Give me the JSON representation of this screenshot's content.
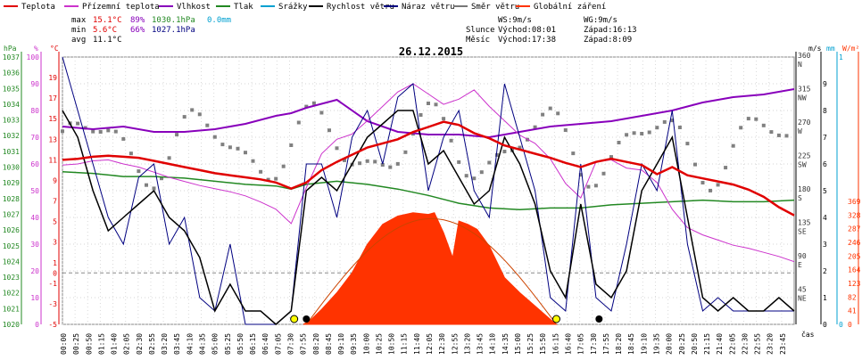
{
  "chart_data": {
    "type": "line",
    "title": "26.12.2015",
    "xlabel": "čas",
    "legend": [
      {
        "name": "Teplota",
        "color": "#e00000"
      },
      {
        "name": "Přízemní teplota",
        "color": "#cc33cc"
      },
      {
        "name": "Vlhkost",
        "color": "#8800bb"
      },
      {
        "name": "Tlak",
        "color": "#228822"
      },
      {
        "name": "Srážky",
        "color": "#00a0d0"
      },
      {
        "name": "Rychlost větru",
        "color": "#000000"
      },
      {
        "name": "Náraz větru",
        "color": "#000080"
      },
      {
        "name": "Směr větru",
        "color": "#777777"
      },
      {
        "name": "Globální záření",
        "color": "#ff3300"
      }
    ],
    "stats": {
      "max": {
        "label": "max",
        "temp": "15.1°C",
        "hum": "89%",
        "press": "1030.1hPa",
        "rain": "0.0mm"
      },
      "min": {
        "label": "min",
        "temp": "5.6°C",
        "hum": "66%",
        "press": "1027.1hPa"
      },
      "avg": {
        "label": "avg",
        "temp": "11.1°C"
      }
    },
    "info": {
      "ws": "WS:9m/s",
      "wg": "WG:9m/s",
      "sun_label": "Slunce",
      "sun_rise": "Východ:08:01",
      "sun_set": "Západ:16:13",
      "moon_label": "Měsíc",
      "moon_rise": "Východ:17:38",
      "moon_set": "Západ:8:09"
    },
    "axes": {
      "hpa": {
        "unit": "hPa",
        "ticks": [
          "1020",
          "1021",
          "1022",
          "1023",
          "1024",
          "1025",
          "1026",
          "1027",
          "1028",
          "1029",
          "1030",
          "1031",
          "1032",
          "1033",
          "1034",
          "1035",
          "1036",
          "1037"
        ]
      },
      "pct": {
        "unit": "%",
        "ticks": [
          "0",
          "10",
          "20",
          "30",
          "40",
          "50",
          "60",
          "70",
          "80",
          "90",
          "100"
        ]
      },
      "temp": {
        "unit": "°C",
        "ticks": [
          "-5",
          "-3",
          "-1",
          "0",
          "1",
          "3",
          "5",
          "7",
          "9",
          "11",
          "13",
          "15",
          "17",
          "19"
        ],
        "ylim": [
          -5,
          21
        ]
      },
      "ms": {
        "unit": "m/s",
        "ticks": [
          "0",
          "1",
          "2",
          "3",
          "4",
          "5",
          "6",
          "7",
          "8",
          "9",
          "10"
        ]
      },
      "dir": {
        "ticks": [
          "45",
          "NE",
          "90",
          "E",
          "135",
          "SE",
          "180",
          "S",
          "225",
          "SW",
          "270",
          "W",
          "315",
          "NW",
          "360",
          "N"
        ]
      },
      "mm": {
        "unit": "mm",
        "ticks": [
          "0",
          "1"
        ]
      },
      "wm2": {
        "unit": "W/m²",
        "ticks": [
          "0",
          "41",
          "82",
          "123",
          "164",
          "205",
          "246",
          "287",
          "328",
          "369"
        ]
      }
    },
    "x_ticks": [
      "00:00",
      "00:25",
      "00:50",
      "01:15",
      "01:40",
      "02:05",
      "02:30",
      "02:55",
      "03:20",
      "03:45",
      "04:10",
      "04:35",
      "05:00",
      "05:25",
      "05:50",
      "06:15",
      "06:40",
      "07:05",
      "07:30",
      "07:55",
      "08:20",
      "08:45",
      "09:10",
      "09:35",
      "10:00",
      "10:25",
      "10:50",
      "11:15",
      "11:40",
      "12:05",
      "12:30",
      "12:55",
      "13:20",
      "13:45",
      "14:10",
      "14:35",
      "15:00",
      "15:25",
      "15:50",
      "16:15",
      "16:40",
      "17:05",
      "17:30",
      "17:55",
      "18:20",
      "18:45",
      "19:10",
      "19:35",
      "20:00",
      "20:25",
      "20:50",
      "21:15",
      "21:40",
      "22:05",
      "22:30",
      "22:55",
      "23:20",
      "23:45"
    ],
    "series": [
      {
        "name": "Teplota",
        "unit": "°C",
        "x_hours": [
          0,
          0.5,
          1,
          1.5,
          2,
          2.5,
          3,
          3.5,
          4,
          4.5,
          5,
          5.5,
          6,
          6.5,
          7,
          7.5,
          8,
          8.5,
          9,
          9.5,
          10,
          10.5,
          11,
          11.5,
          12,
          12.5,
          13,
          13.5,
          14,
          14.5,
          15,
          15.5,
          16,
          16.5,
          17,
          17.5,
          18,
          18.5,
          19,
          19.5,
          20,
          20.5,
          21,
          21.5,
          22,
          22.5,
          23,
          23.5,
          24
        ],
        "values": [
          11,
          11.1,
          11.3,
          11.4,
          11.3,
          11.2,
          10.9,
          10.6,
          10.3,
          10,
          9.7,
          9.5,
          9.3,
          9.1,
          8.8,
          8.2,
          8.8,
          10,
          10.8,
          11.5,
          12.2,
          12.6,
          13,
          13.7,
          14.2,
          14.7,
          14.4,
          13.6,
          13.1,
          12.4,
          12,
          11.6,
          11.2,
          10.7,
          10.3,
          10.8,
          11.1,
          10.8,
          10.5,
          9.6,
          10.3,
          9.5,
          9.2,
          8.9,
          8.6,
          8.1,
          7.4,
          6.4,
          5.6
        ]
      },
      {
        "name": "Přízemní teplota",
        "unit": "°C",
        "x_hours": [
          0,
          0.5,
          1,
          1.5,
          2,
          2.5,
          3,
          3.5,
          4,
          4.5,
          5,
          5.5,
          6,
          6.5,
          7,
          7.5,
          8,
          8.5,
          9,
          9.5,
          10,
          10.5,
          11,
          11.5,
          12,
          12.5,
          13,
          13.5,
          14,
          14.5,
          15,
          15.5,
          16,
          16.5,
          17,
          17.5,
          18,
          18.5,
          19,
          19.5,
          20,
          20.5,
          21,
          21.5,
          22,
          22.5,
          23,
          23.5,
          24
        ],
        "values": [
          10.5,
          10.6,
          10.9,
          11,
          10.6,
          10.3,
          9.8,
          9.3,
          8.9,
          8.5,
          8.2,
          7.9,
          7.5,
          6.9,
          6.2,
          4.8,
          8.3,
          11.6,
          13,
          13.5,
          14.8,
          16.2,
          17.6,
          18.4,
          17.4,
          16.4,
          16.9,
          17.8,
          16.2,
          14.8,
          13.4,
          12.6,
          11.1,
          8.7,
          7.3,
          10.8,
          11,
          10.2,
          10,
          8.8,
          6.2,
          4.4,
          3.7,
          3.2,
          2.7,
          2.4,
          2,
          1.6,
          1.1
        ]
      },
      {
        "name": "Vlhkost",
        "unit": "%",
        "x_hours": [
          0,
          1,
          2,
          3,
          4,
          5,
          6,
          7,
          7.5,
          8,
          9,
          10,
          11,
          12,
          13,
          14,
          15,
          16,
          17,
          18,
          19,
          20,
          21,
          22,
          23,
          24
        ],
        "values": [
          74,
          73,
          74,
          72,
          72,
          73,
          75,
          78,
          79,
          81,
          84,
          76,
          72,
          71,
          71,
          70,
          72,
          74,
          75,
          76,
          78,
          80,
          83,
          85,
          86,
          88
        ]
      },
      {
        "name": "Tlak",
        "unit": "hPa",
        "x_hours": [
          0,
          1,
          2,
          3,
          4,
          5,
          6,
          7,
          7.5,
          8,
          9,
          10,
          11,
          12,
          13,
          14,
          15,
          16,
          17,
          18,
          19,
          20,
          21,
          22,
          23,
          24
        ],
        "values": [
          1029.7,
          1029.6,
          1029.4,
          1029.4,
          1029.3,
          1029.1,
          1028.9,
          1028.8,
          1028.6,
          1028.9,
          1029.1,
          1028.9,
          1028.6,
          1028.2,
          1027.7,
          1027.4,
          1027.3,
          1027.4,
          1027.4,
          1027.6,
          1027.7,
          1027.8,
          1027.9,
          1027.8,
          1027.8,
          1027.9
        ]
      },
      {
        "name": "Rychlost větru",
        "unit": "m/s",
        "x_hours": [
          0,
          0.5,
          1,
          1.5,
          2,
          2.5,
          3,
          3.5,
          4,
          4.5,
          5,
          5.5,
          6,
          6.5,
          7,
          7.5,
          8,
          8.5,
          9,
          9.5,
          10,
          10.5,
          11,
          11.5,
          12,
          12.5,
          13,
          13.5,
          14,
          14.5,
          15,
          15.5,
          16,
          16.5,
          17,
          17.5,
          18,
          18.5,
          19,
          19.5,
          20,
          20.5,
          21,
          21.5,
          22,
          22.5,
          23,
          23.5,
          24
        ],
        "values": [
          8,
          7,
          5,
          3.5,
          4,
          4.5,
          5,
          4,
          3.5,
          2.5,
          0.5,
          1.5,
          0.5,
          0.5,
          0,
          0.5,
          5,
          5.5,
          5,
          6,
          7,
          7.5,
          8,
          8,
          6,
          6.5,
          5.5,
          4.5,
          5,
          7,
          6,
          4.5,
          2,
          1,
          4.5,
          1.5,
          1,
          2,
          5,
          6,
          7,
          4,
          1,
          0.5,
          1,
          0.5,
          0.5,
          1,
          0.5
        ]
      },
      {
        "name": "Náraz větru",
        "unit": "m/s",
        "x_hours": [
          0,
          0.5,
          1,
          1.5,
          2,
          2.5,
          3,
          3.5,
          4,
          4.5,
          5,
          5.5,
          6,
          6.5,
          7,
          7.5,
          8,
          8.5,
          9,
          9.5,
          10,
          10.5,
          11,
          11.5,
          12,
          12.5,
          13,
          13.5,
          14,
          14.5,
          15,
          15.5,
          16,
          16.5,
          17,
          17.5,
          18,
          18.5,
          19,
          19.5,
          20,
          20.5,
          21,
          21.5,
          22,
          22.5,
          23,
          23.5,
          24
        ],
        "values": [
          10,
          8,
          6,
          4,
          3,
          5.5,
          6,
          3,
          4,
          1,
          0.5,
          3,
          0,
          0,
          0,
          0.5,
          6,
          6,
          4,
          7,
          8,
          6,
          8.5,
          9,
          5,
          7,
          8,
          5,
          4,
          9,
          7,
          5,
          1,
          0.5,
          6,
          1,
          0.5,
          3,
          6,
          5,
          8,
          3,
          0.5,
          1,
          0.5,
          0.5,
          0.5,
          0.5,
          0.5
        ]
      },
      {
        "name": "Globální záření",
        "unit": "W/m²",
        "x_hours": [
          7.9,
          8.1,
          8.5,
          9,
          9.5,
          10,
          10.5,
          11,
          11.5,
          12,
          12.2,
          12.5,
          12.8,
          13,
          13.3,
          13.6,
          14,
          14.5,
          15,
          15.5,
          16,
          16.2
        ],
        "values": [
          0,
          10,
          45,
          95,
          155,
          240,
          300,
          325,
          335,
          330,
          335,
          275,
          200,
          310,
          300,
          285,
          235,
          140,
          95,
          55,
          15,
          0
        ]
      }
    ]
  }
}
